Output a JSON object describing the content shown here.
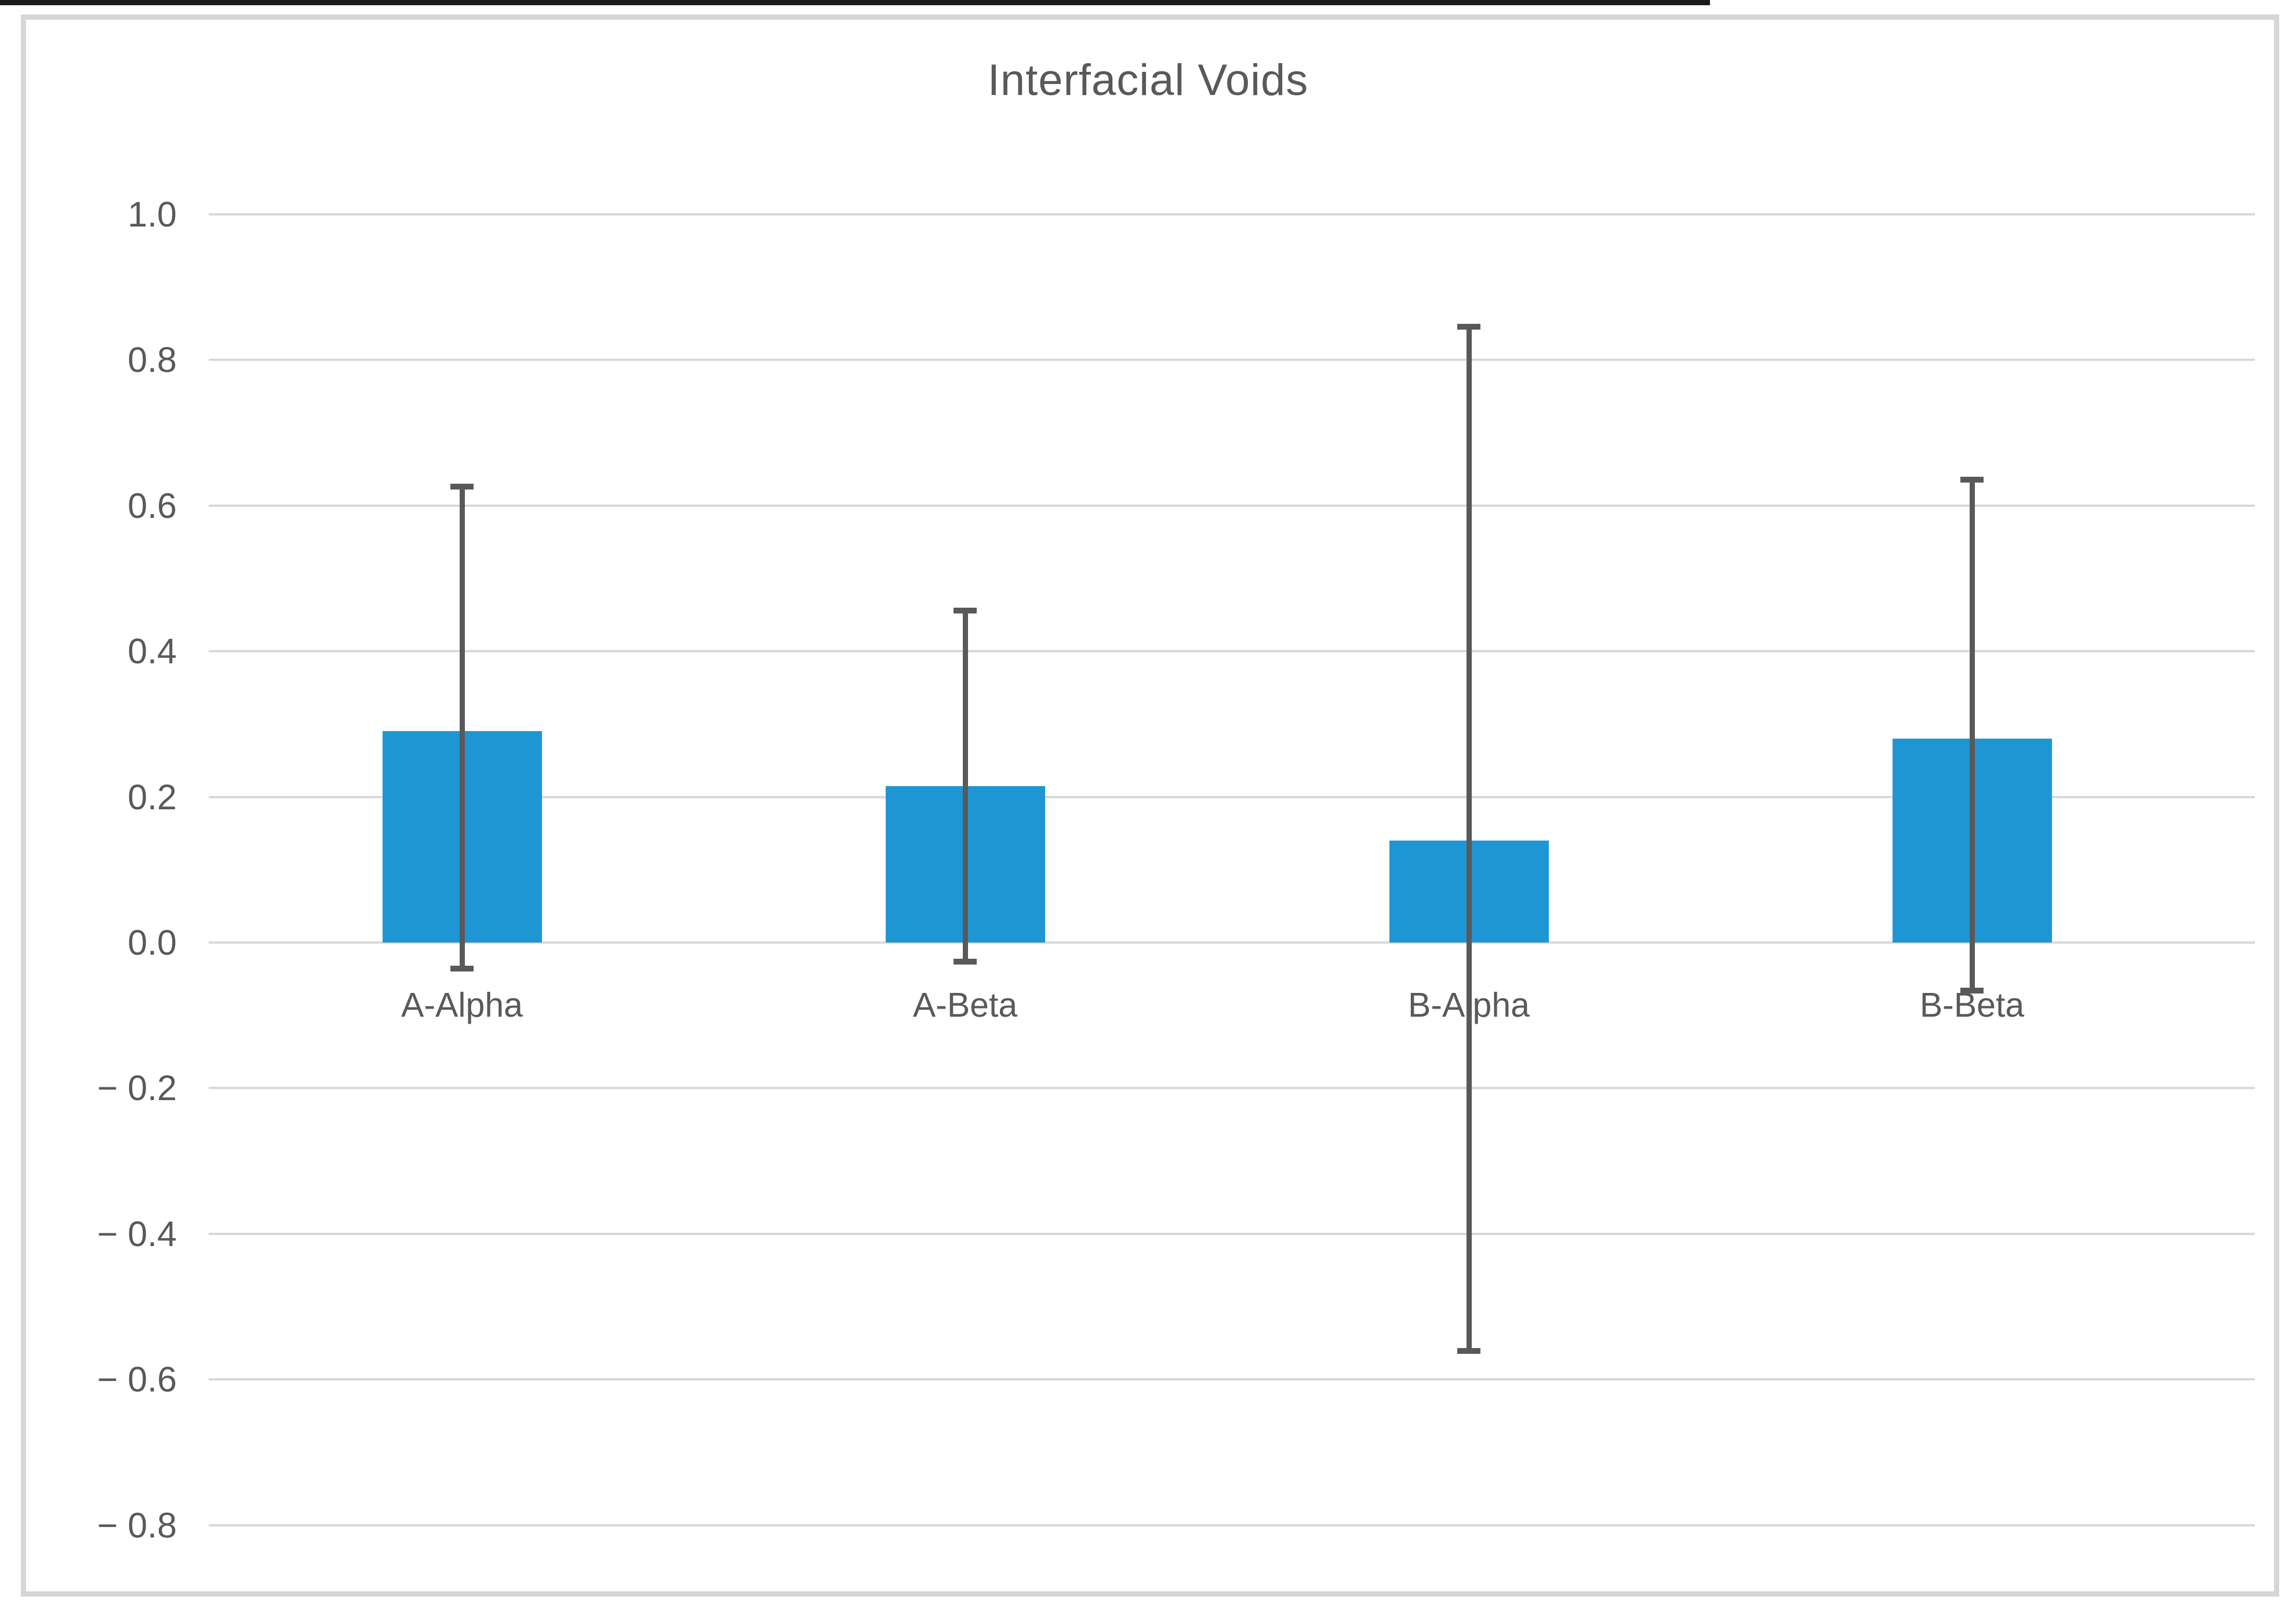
{
  "page": {
    "top_strip_color": "#1b1b1b",
    "frame_border_color": "#d6d6d6",
    "background_color": "#ffffff"
  },
  "chart": {
    "title": "Interfacial Voids",
    "colors": {
      "bar_fill": "#1e96d4",
      "gridline": "#d9d9d9",
      "error_bar": "#595959",
      "text": "#595959"
    }
  },
  "chart_data": {
    "type": "bar",
    "title": "Interfacial Voids",
    "categories": [
      "A-Alpha",
      "A-Beta",
      "B-Alpha",
      "B-Beta"
    ],
    "values": [
      0.29,
      0.215,
      0.14,
      0.28
    ],
    "error_high": [
      0.63,
      0.46,
      0.85,
      0.64
    ],
    "error_low": [
      -0.04,
      -0.03,
      -0.565,
      -0.07
    ],
    "xlabel": "",
    "ylabel": "",
    "ylim": [
      -0.9,
      1.05
    ],
    "yticks": [
      1.0,
      0.8,
      0.6,
      0.4,
      0.2,
      0.0,
      -0.2,
      -0.4,
      -0.6,
      -0.8
    ],
    "ytick_labels": [
      "1.0",
      "0.8",
      "0.6",
      "0.4",
      "0.2",
      "0.0",
      "− 0.2",
      "− 0.4",
      "− 0.6",
      "− 0.8"
    ],
    "grid": true,
    "legend": false,
    "error_bars_symmetric": true
  }
}
